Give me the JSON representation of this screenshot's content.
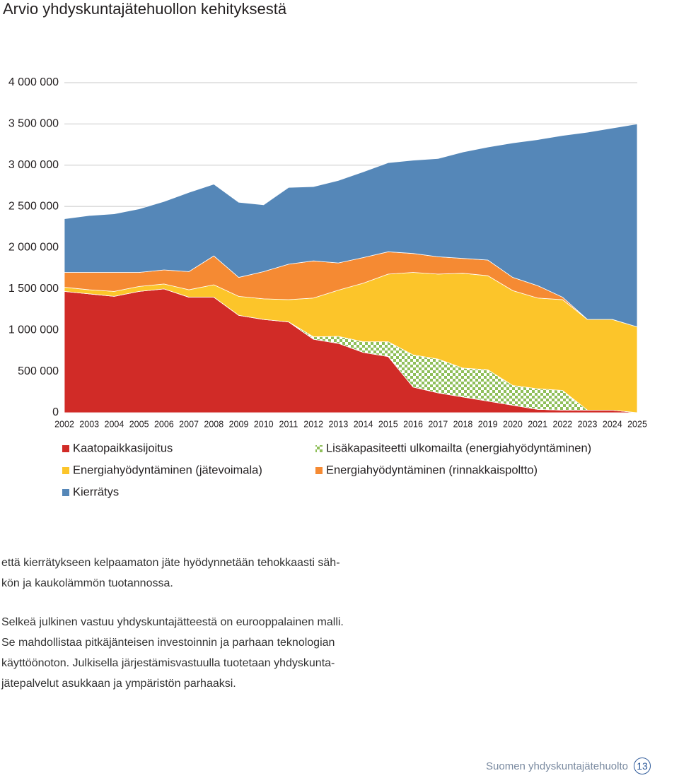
{
  "chart_data": {
    "type": "stacked-area",
    "title": "Arvio yhdyskuntajätehuollon kehityksestä",
    "categories": [
      "2002",
      "2003",
      "2004",
      "2005",
      "2006",
      "2007",
      "2008",
      "2009",
      "2010",
      "2011",
      "2012",
      "2013",
      "2014",
      "2015",
      "2016",
      "2017",
      "2018",
      "2019",
      "2020",
      "2021",
      "2022",
      "2023",
      "2024",
      "2025"
    ],
    "series": [
      {
        "name": "Kaatopaikkasijoitus",
        "color": "#d12b27",
        "values": [
          1470000,
          1440000,
          1410000,
          1470000,
          1500000,
          1400000,
          1400000,
          1180000,
          1130000,
          1100000,
          890000,
          840000,
          730000,
          680000,
          310000,
          240000,
          190000,
          140000,
          90000,
          40000,
          30000,
          30000,
          30000,
          0
        ]
      },
      {
        "name": "Lisäkapasiteetti ulkomailta (energiahyödyntäminen)",
        "color": "#8fbf5a",
        "pattern": "checkered",
        "values": [
          0,
          0,
          0,
          0,
          0,
          0,
          0,
          0,
          0,
          0,
          30000,
          85000,
          130000,
          180000,
          390000,
          410000,
          350000,
          380000,
          240000,
          250000,
          240000,
          0,
          0,
          0
        ]
      },
      {
        "name": "Energiahyödyntäminen (jätevoimala)",
        "color": "#fcc52a",
        "values": [
          50000,
          50000,
          60000,
          60000,
          60000,
          90000,
          150000,
          230000,
          250000,
          270000,
          470000,
          560000,
          710000,
          820000,
          1000000,
          1030000,
          1150000,
          1140000,
          1150000,
          1100000,
          1100000,
          1100000,
          1100000,
          1040000
        ]
      },
      {
        "name": "Energiahyödyntäminen (rinnakkaispoltto)",
        "color": "#f58a33",
        "values": [
          180000,
          210000,
          230000,
          170000,
          170000,
          220000,
          350000,
          230000,
          330000,
          430000,
          450000,
          330000,
          310000,
          270000,
          230000,
          210000,
          180000,
          190000,
          160000,
          150000,
          30000,
          0,
          0,
          0
        ]
      },
      {
        "name": "Kierrätys",
        "color": "#5587b8",
        "values": [
          650000,
          690000,
          710000,
          770000,
          830000,
          960000,
          870000,
          910000,
          810000,
          930000,
          900000,
          1000000,
          1040000,
          1080000,
          1130000,
          1190000,
          1290000,
          1370000,
          1630000,
          1770000,
          1960000,
          2270000,
          2320000,
          2460000
        ]
      }
    ],
    "ylim": [
      0,
      4000000
    ],
    "yticks": [
      0,
      {
        "value": 500000,
        "label": "500 000"
      },
      {
        "value": 1000000,
        "label": "1 000 000"
      },
      {
        "value": 1500000,
        "label": "1 500 000"
      },
      {
        "value": 2000000,
        "label": "2 000 000"
      },
      {
        "value": 2500000,
        "label": "2 500 000"
      },
      {
        "value": 3000000,
        "label": "3 000 000"
      },
      {
        "value": 3500000,
        "label": "3 500 000"
      },
      {
        "value": 4000000,
        "label": "4 000 000"
      }
    ],
    "grid": true
  },
  "text": {
    "paragraphs": [
      [
        "että kierrätykseen kelpaamaton jäte hyödynnetään tehokkaasti säh-",
        "kön ja kaukolämmön tuotannossa."
      ],
      [
        "Selkeä julkinen vastuu yhdyskuntajätteestä on eurooppalainen malli.",
        "Se mahdollistaa pitkäjänteisen investoinnin ja parhaan teknologian",
        "käyttöönoton. Julkisella järjestämisvastuulla tuotetaan yhdyskunta-",
        "jätepalvelut asukkaan ja ympäristön parhaaksi."
      ]
    ]
  },
  "footer": {
    "title": "Suomen yhdyskuntajätehuolto",
    "page": "13"
  }
}
